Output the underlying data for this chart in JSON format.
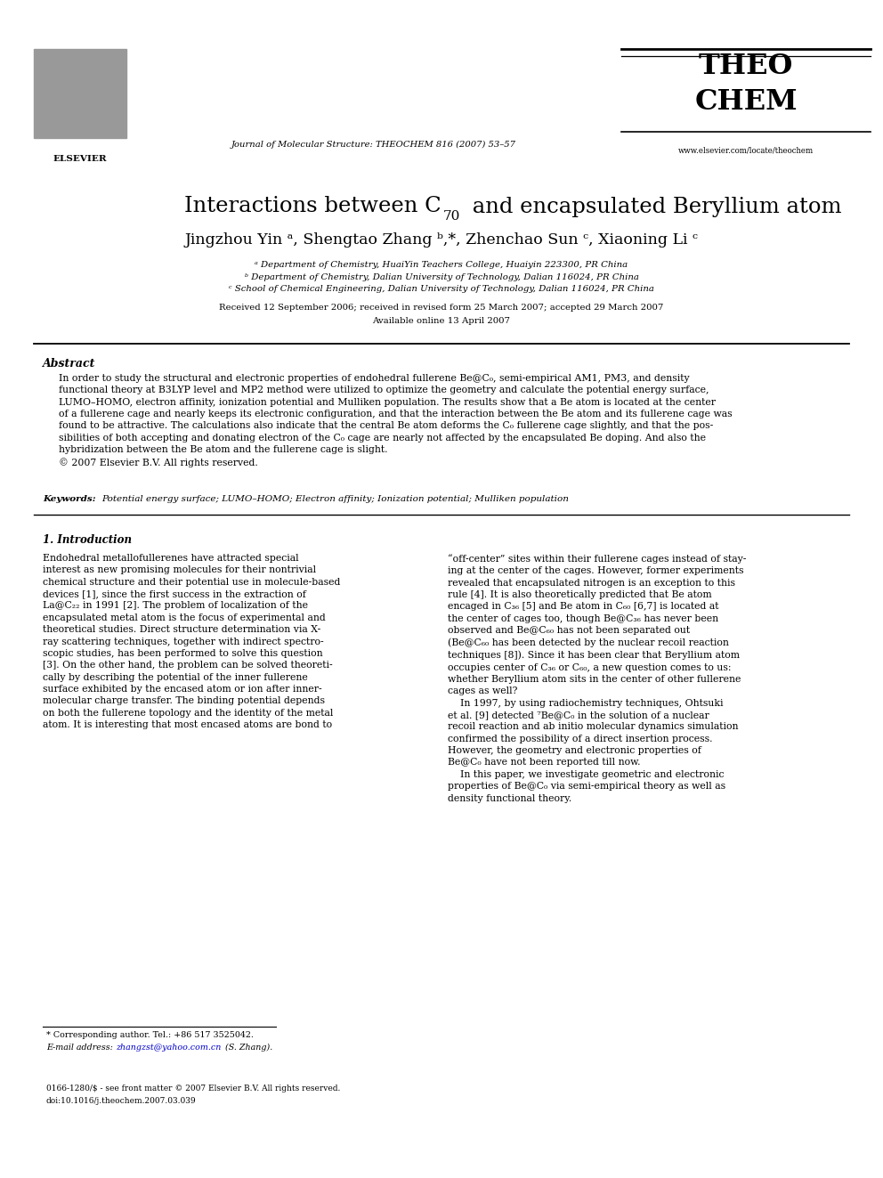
{
  "bg_color": "#ffffff",
  "page_width": 9.92,
  "page_height": 13.23,
  "header_journal": "Journal of Molecular Structure: THEOCHEM 816 (2007) 53–57",
  "header_website": "www.elsevier.com/locate/theochem",
  "title_part1": "Interactions between C",
  "title_sub": "70",
  "title_part2": " and encapsulated Beryllium atom",
  "authors": "Jingzhou Yin ᵃ, Shengtao Zhang ᵇ,*, Zhenchao Sun ᶜ, Xiaoning Li ᶜ",
  "affil_a": "ᵃ Department of Chemistry, HuaiYin Teachers College, Huaiyin 223300, PR China",
  "affil_b": "ᵇ Department of Chemistry, Dalian University of Technology, Dalian 116024, PR China",
  "affil_c": "ᶜ School of Chemical Engineering, Dalian University of Technology, Dalian 116024, PR China",
  "received_line1": "Received 12 September 2006; received in revised form 25 March 2007; accepted 29 March 2007",
  "received_line2": "Available online 13 April 2007",
  "abstract_title": "Abstract",
  "abstract_text": "In order to study the structural and electronic properties of endohedral fullerene Be@C₀, semi-empirical AM1, PM3, and density\nfunctional theory at B3LYP level and MP2 method were utilized to optimize the geometry and calculate the potential energy surface,\nLUMO–HOMO, electron affinity, ionization potential and Mulliken population. The results show that a Be atom is located at the center\nof a fullerene cage and nearly keeps its electronic configuration, and that the interaction between the Be atom and its fullerene cage was\nfound to be attractive. The calculations also indicate that the central Be atom deforms the C₀ fullerene cage slightly, and that the pos-\nsibilities of both accepting and donating electron of the C₀ cage are nearly not affected by the encapsulated Be doping. And also the\nhybridization between the Be atom and the fullerene cage is slight.\n© 2007 Elsevier B.V. All rights reserved.",
  "keywords_bold": "Keywords: ",
  "keywords_rest": "Potential energy surface; LUMO–HOMO; Electron affinity; Ionization potential; Mulliken population",
  "section1_title": "1. Introduction",
  "col1_text": "Endohedral metallofullerenes have attracted special\ninterest as new promising molecules for their nontrivial\nchemical structure and their potential use in molecule-based\ndevices [1], since the first success in the extraction of\nLa@C₂₂ in 1991 [2]. The problem of localization of the\nencapsulated metal atom is the focus of experimental and\ntheoretical studies. Direct structure determination via X-\nray scattering techniques, together with indirect spectro-\nscopic studies, has been performed to solve this question\n[3]. On the other hand, the problem can be solved theoreti-\ncally by describing the potential of the inner fullerene\nsurface exhibited by the encased atom or ion after inner-\nmolecular charge transfer. The binding potential depends\non both the fullerene topology and the identity of the metal\natom. It is interesting that most encased atoms are bond to",
  "col2_text": "“off-center” sites within their fullerene cages instead of stay-\ning at the center of the cages. However, former experiments\nrevealed that encapsulated nitrogen is an exception to this\nrule [4]. It is also theoretically predicted that Be atom\nencaged in C₃₆ [5] and Be atom in C₆₀ [6,7] is located at\nthe center of cages too, though Be@C₃₆ has never been\nobserved and Be@C₆₀ has not been separated out\n(Be@C₆₀ has been detected by the nuclear recoil reaction\ntechniques [8]). Since it has been clear that Beryllium atom\noccupies center of C₃₆ or C₆₀, a new question comes to us:\nwhether Beryllium atom sits in the center of other fullerene\ncages as well?\n    In 1997, by using radiochemistry techniques, Ohtsuki\net al. [9] detected ⁷Be@C₀ in the solution of a nuclear\nrecoil reaction and ab initio molecular dynamics simulation\nconfirmed the possibility of a direct insertion process.\nHowever, the geometry and electronic properties of\nBe@C₀ have not been reported till now.\n    In this paper, we investigate geometric and electronic\nproperties of Be@C₀ via semi-empirical theory as well as\ndensity functional theory.",
  "footnote1": "* Corresponding author. Tel.: +86 517 3525042.",
  "footnote2_pre": "E-mail address: ",
  "footnote2_link": "zhangzst@yahoo.com.cn",
  "footnote2_post": " (S. Zhang).",
  "footnote3": "0166-1280/$ - see front matter © 2007 Elsevier B.V. All rights reserved.",
  "footnote4": "doi:10.1016/j.theochem.2007.03.039",
  "link_color": "#0000cc"
}
